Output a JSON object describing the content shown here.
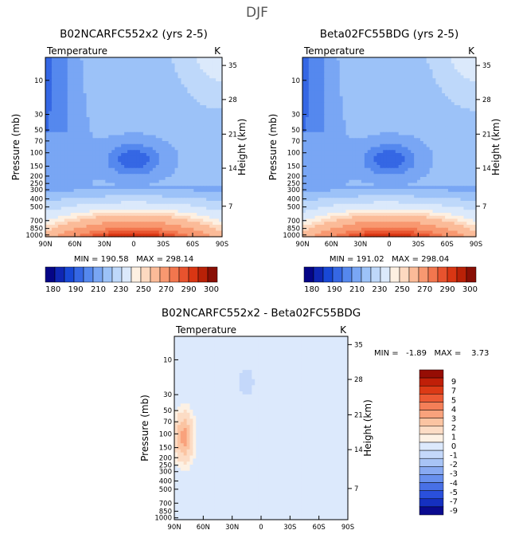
{
  "title": "DJF",
  "colors": {
    "scale": [
      "#050587",
      "#0f26b4",
      "#1848d6",
      "#3567e4",
      "#5588ee",
      "#79a6f4",
      "#9cc2f8",
      "#bed8fa",
      "#dbe9fb",
      "#fdf0e2",
      "#fdd9c0",
      "#fbbb98",
      "#f89870",
      "#f2764e",
      "#e8532e",
      "#d93613",
      "#b92107",
      "#890f05"
    ],
    "diff": [
      "#0a0a8f",
      "#1530c0",
      "#2a50dc",
      "#4870e6",
      "#6890ee",
      "#88aaf2",
      "#a8c4f6",
      "#c4d8fa",
      "#dce9fc",
      "#fdf1e4",
      "#fcdcc5",
      "#fbc4a2",
      "#f9a27c",
      "#f47f58",
      "#ec5a34",
      "#dc3a16",
      "#c01f08",
      "#960d04"
    ]
  },
  "chart_data": [
    {
      "type": "heatmap",
      "title": "B02NCARFC552x2 (yrs 2-5)",
      "subtitle": "Temperature",
      "unit": "K",
      "xlabel": "",
      "ylabel": "Pressure (mb)",
      "ylabel_right": "Height (km)",
      "x_ticks": [
        "90N",
        "60N",
        "30N",
        "0",
        "30S",
        "60S",
        "90S"
      ],
      "y_ticks": [
        "10",
        "30",
        "50",
        "70",
        "100",
        "150",
        "200",
        "250",
        "300",
        "400",
        "500",
        "700",
        "850",
        "1000"
      ],
      "y_ticks_right": [
        "35",
        "28",
        "21",
        "14",
        "7"
      ],
      "stats": "MIN = 190.58   MAX = 298.14",
      "colorbar_labels": [
        "180",
        "190",
        "210",
        "230",
        "250",
        "270",
        "290",
        "300"
      ]
    },
    {
      "type": "heatmap",
      "title": "Beta02FC55BDG (yrs 2-5)",
      "subtitle": "Temperature",
      "unit": "K",
      "xlabel": "",
      "ylabel": "Pressure (mb)",
      "ylabel_right": "Height (km)",
      "x_ticks": [
        "90N",
        "60N",
        "30N",
        "0",
        "30S",
        "60S",
        "90S"
      ],
      "y_ticks": [
        "10",
        "30",
        "50",
        "70",
        "100",
        "150",
        "200",
        "250",
        "300",
        "400",
        "500",
        "700",
        "850",
        "1000"
      ],
      "y_ticks_right": [
        "35",
        "28",
        "21",
        "14",
        "7"
      ],
      "stats": "MIN = 191.02   MAX = 298.04",
      "colorbar_labels": [
        "180",
        "190",
        "210",
        "230",
        "250",
        "270",
        "290",
        "300"
      ]
    },
    {
      "type": "heatmap",
      "title": "B02NCARFC552x2 - Beta02FC55BDG",
      "subtitle": "Temperature",
      "unit": "K",
      "xlabel": "",
      "ylabel": "Pressure (mb)",
      "ylabel_right": "Height (km)",
      "x_ticks": [
        "90N",
        "60N",
        "30N",
        "0",
        "30S",
        "60S",
        "90S"
      ],
      "y_ticks": [
        "10",
        "30",
        "50",
        "70",
        "100",
        "150",
        "200",
        "250",
        "300",
        "400",
        "500",
        "700",
        "850",
        "1000"
      ],
      "y_ticks_right": [
        "35",
        "28",
        "21",
        "14",
        "7"
      ],
      "stats": "MIN =   -1.89   MAX =    3.73",
      "colorbar_labels": [
        "9",
        "7",
        "5",
        "4",
        "3",
        "2",
        "1",
        "0",
        "-1",
        "-2",
        "-3",
        "-4",
        "-5",
        "-7",
        "-9"
      ]
    }
  ]
}
